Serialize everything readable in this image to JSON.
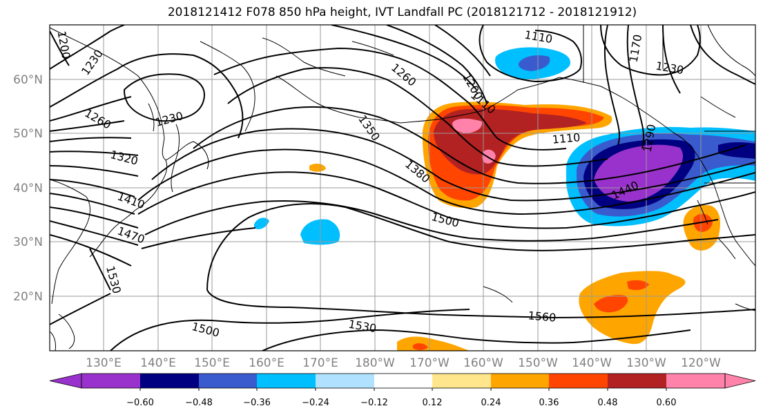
{
  "title": "2018121412 F078 850 hPa height, IVT Landfall PC (2018121712 - 2018121912)",
  "lat_labels": [
    "60°N",
    "50°N",
    "40°N",
    "30°N",
    "20°N"
  ],
  "lon_labels": [
    "130°E",
    "140°E",
    "150°E",
    "160°E",
    "170°E",
    "180°W",
    "170°W",
    "160°W",
    "150°W",
    "140°W",
    "130°W",
    "120°W"
  ],
  "colorbar": {
    "colors": [
      "#9932cc",
      "#000080",
      "#3a5bcd",
      "#00bfff",
      "#b0e2ff",
      "#ffffff",
      "#ffe68c",
      "#ffa500",
      "#ff4500",
      "#b22222",
      "#ff82ab"
    ],
    "tick_labels": [
      "−0.60",
      "−0.48",
      "−0.36",
      "−0.24",
      "−0.12",
      "0.12",
      "0.24",
      "0.36",
      "0.48",
      "0.60"
    ]
  },
  "contour_labels": [
    "1200",
    "1230",
    "1260",
    "1230",
    "1320",
    "1410",
    "1470",
    "1530",
    "1500",
    "1350",
    "1380",
    "1260",
    "1200",
    "1110",
    "1110",
    "1110",
    "1170",
    "1230",
    "1290",
    "1440",
    "1500",
    "1530",
    "1560"
  ]
}
